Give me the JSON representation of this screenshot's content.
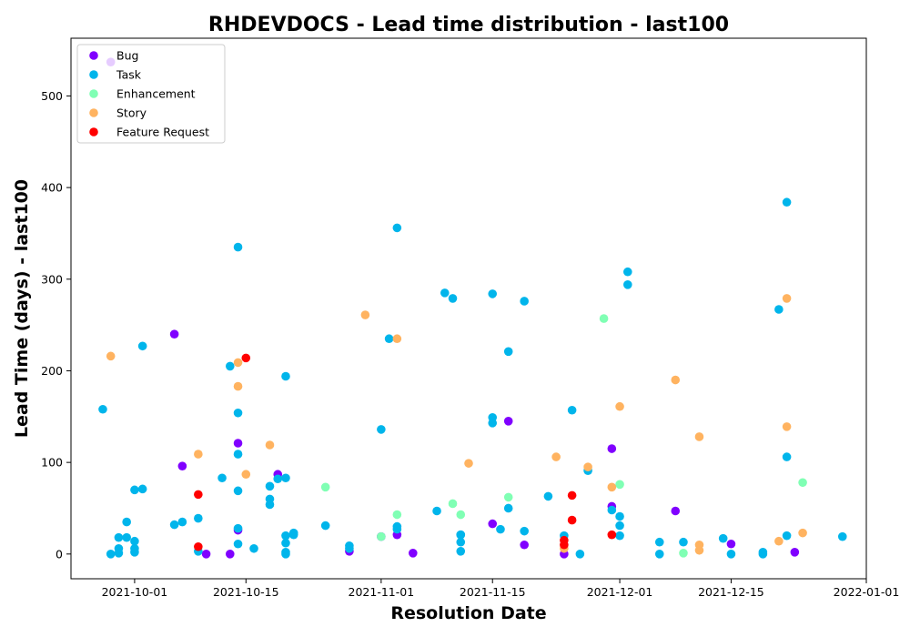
{
  "chart_data": {
    "type": "scatter",
    "title": "RHDEVDOCS - Lead time distribution - last100",
    "xlabel": "Resolution Date",
    "ylabel": "Lead Time (days) - last100",
    "x_ticks": [
      "2021-10-01",
      "2021-10-15",
      "2021-11-01",
      "2021-11-15",
      "2021-12-01",
      "2021-12-15",
      "2022-01-01"
    ],
    "y_ticks": [
      0,
      100,
      200,
      300,
      400,
      500
    ],
    "xlim": [
      "2021-09-23",
      "2022-01-01"
    ],
    "ylim": [
      -27,
      563
    ],
    "grid": false,
    "legend_position": "top-left",
    "series": [
      {
        "name": "Bug",
        "color": "#8000ff",
        "points": [
          [
            "2021-09-28",
            537
          ],
          [
            "2021-10-06",
            240
          ],
          [
            "2021-10-07",
            96
          ],
          [
            "2021-10-10",
            0
          ],
          [
            "2021-10-13",
            0
          ],
          [
            "2021-10-14",
            121
          ],
          [
            "2021-10-14",
            26
          ],
          [
            "2021-10-19",
            87
          ],
          [
            "2021-10-28",
            3
          ],
          [
            "2021-11-01",
            19
          ],
          [
            "2021-11-03",
            21
          ],
          [
            "2021-11-05",
            1
          ],
          [
            "2021-11-15",
            33
          ],
          [
            "2021-11-17",
            145
          ],
          [
            "2021-11-19",
            10
          ],
          [
            "2021-11-24",
            0
          ],
          [
            "2021-11-30",
            115
          ],
          [
            "2021-11-30",
            52
          ],
          [
            "2021-12-08",
            47
          ],
          [
            "2021-12-15",
            11
          ],
          [
            "2021-12-23",
            2
          ]
        ]
      },
      {
        "name": "Task",
        "color": "#00b5eb",
        "points": [
          [
            "2021-09-27",
            158
          ],
          [
            "2021-09-28",
            0
          ],
          [
            "2021-09-29",
            1
          ],
          [
            "2021-09-29",
            6
          ],
          [
            "2021-09-29",
            18
          ],
          [
            "2021-09-30",
            35
          ],
          [
            "2021-09-30",
            18
          ],
          [
            "2021-10-01",
            70
          ],
          [
            "2021-10-01",
            14
          ],
          [
            "2021-10-01",
            6
          ],
          [
            "2021-10-01",
            2
          ],
          [
            "2021-10-02",
            71
          ],
          [
            "2021-10-02",
            227
          ],
          [
            "2021-10-06",
            32
          ],
          [
            "2021-10-07",
            35
          ],
          [
            "2021-10-09",
            39
          ],
          [
            "2021-10-09",
            3
          ],
          [
            "2021-10-12",
            83
          ],
          [
            "2021-10-13",
            205
          ],
          [
            "2021-10-14",
            335
          ],
          [
            "2021-10-14",
            154
          ],
          [
            "2021-10-14",
            109
          ],
          [
            "2021-10-14",
            69
          ],
          [
            "2021-10-14",
            28
          ],
          [
            "2021-10-14",
            11
          ],
          [
            "2021-10-16",
            6
          ],
          [
            "2021-10-18",
            74
          ],
          [
            "2021-10-18",
            60
          ],
          [
            "2021-10-18",
            54
          ],
          [
            "2021-10-19",
            82
          ],
          [
            "2021-10-20",
            194
          ],
          [
            "2021-10-20",
            83
          ],
          [
            "2021-10-20",
            20
          ],
          [
            "2021-10-20",
            12
          ],
          [
            "2021-10-20",
            2
          ],
          [
            "2021-10-20",
            0
          ],
          [
            "2021-10-21",
            23
          ],
          [
            "2021-10-21",
            21
          ],
          [
            "2021-10-25",
            31
          ],
          [
            "2021-10-28",
            9
          ],
          [
            "2021-10-28",
            6
          ],
          [
            "2021-11-01",
            136
          ],
          [
            "2021-11-02",
            235
          ],
          [
            "2021-11-03",
            356
          ],
          [
            "2021-11-03",
            30
          ],
          [
            "2021-11-03",
            27
          ],
          [
            "2021-11-08",
            47
          ],
          [
            "2021-11-09",
            285
          ],
          [
            "2021-11-10",
            279
          ],
          [
            "2021-11-11",
            21
          ],
          [
            "2021-11-11",
            21
          ],
          [
            "2021-11-11",
            13
          ],
          [
            "2021-11-11",
            3
          ],
          [
            "2021-11-15",
            284
          ],
          [
            "2021-11-15",
            149
          ],
          [
            "2021-11-15",
            143
          ],
          [
            "2021-11-16",
            27
          ],
          [
            "2021-11-17",
            50
          ],
          [
            "2021-11-17",
            221
          ],
          [
            "2021-11-19",
            276
          ],
          [
            "2021-11-19",
            25
          ],
          [
            "2021-11-22",
            63
          ],
          [
            "2021-11-24",
            20
          ],
          [
            "2021-11-25",
            157
          ],
          [
            "2021-11-26",
            0
          ],
          [
            "2021-11-27",
            91
          ],
          [
            "2021-11-30",
            48
          ],
          [
            "2021-12-01",
            41
          ],
          [
            "2021-12-01",
            31
          ],
          [
            "2021-12-01",
            20
          ],
          [
            "2021-12-02",
            308
          ],
          [
            "2021-12-02",
            294
          ],
          [
            "2021-12-06",
            13
          ],
          [
            "2021-12-06",
            0
          ],
          [
            "2021-12-09",
            13
          ],
          [
            "2021-12-14",
            17
          ],
          [
            "2021-12-15",
            0
          ],
          [
            "2021-12-19",
            2
          ],
          [
            "2021-12-19",
            0
          ],
          [
            "2021-12-21",
            267
          ],
          [
            "2021-12-22",
            106
          ],
          [
            "2021-12-22",
            384
          ],
          [
            "2021-12-22",
            20
          ],
          [
            "2021-12-29",
            19
          ]
        ]
      },
      {
        "name": "Enhancement",
        "color": "#80ffb4",
        "points": [
          [
            "2021-10-25",
            73
          ],
          [
            "2021-11-01",
            19
          ],
          [
            "2021-11-03",
            43
          ],
          [
            "2021-11-10",
            55
          ],
          [
            "2021-11-11",
            43
          ],
          [
            "2021-11-17",
            62
          ],
          [
            "2021-11-29",
            257
          ],
          [
            "2021-12-01",
            76
          ],
          [
            "2021-12-09",
            1
          ],
          [
            "2021-12-24",
            78
          ]
        ]
      },
      {
        "name": "Story",
        "color": "#ffb360",
        "points": [
          [
            "2021-09-28",
            216
          ],
          [
            "2021-10-09",
            109
          ],
          [
            "2021-10-14",
            209
          ],
          [
            "2021-10-14",
            183
          ],
          [
            "2021-10-15",
            87
          ],
          [
            "2021-10-18",
            119
          ],
          [
            "2021-10-30",
            261
          ],
          [
            "2021-11-03",
            235
          ],
          [
            "2021-11-12",
            99
          ],
          [
            "2021-11-23",
            106
          ],
          [
            "2021-11-24",
            6
          ],
          [
            "2021-11-27",
            95
          ],
          [
            "2021-11-30",
            73
          ],
          [
            "2021-12-01",
            161
          ],
          [
            "2021-12-08",
            190
          ],
          [
            "2021-12-11",
            128
          ],
          [
            "2021-12-11",
            10
          ],
          [
            "2021-12-11",
            4
          ],
          [
            "2021-12-21",
            14
          ],
          [
            "2021-12-22",
            279
          ],
          [
            "2021-12-22",
            139
          ],
          [
            "2021-12-24",
            23
          ]
        ]
      },
      {
        "name": "Feature Request",
        "color": "#ff0000",
        "points": [
          [
            "2021-10-09",
            65
          ],
          [
            "2021-10-09",
            8
          ],
          [
            "2021-10-15",
            214
          ],
          [
            "2021-11-24",
            15
          ],
          [
            "2021-11-24",
            10
          ],
          [
            "2021-11-25",
            64
          ],
          [
            "2021-11-25",
            37
          ],
          [
            "2021-11-30",
            21
          ]
        ]
      }
    ]
  }
}
